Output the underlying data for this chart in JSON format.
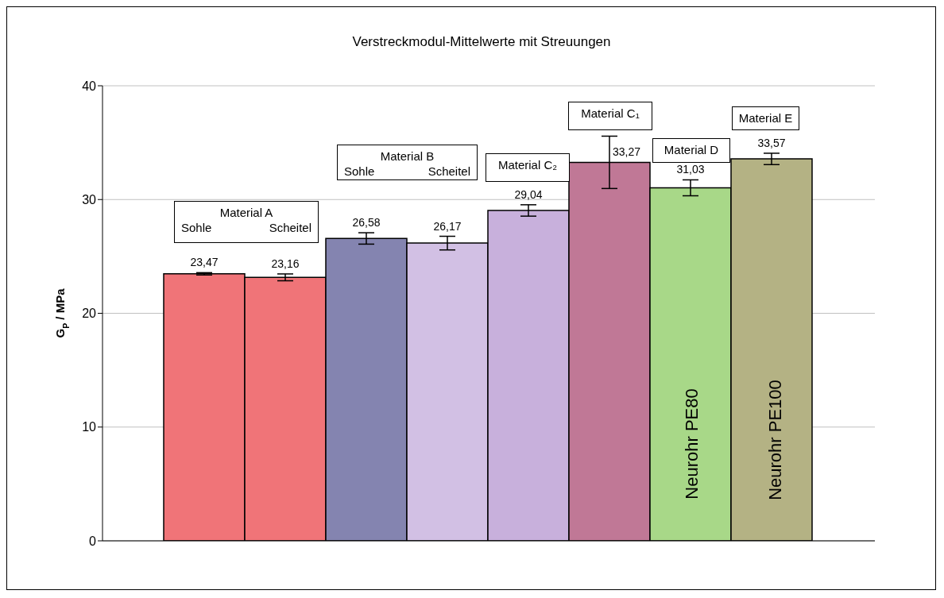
{
  "chart_data": {
    "type": "bar",
    "title": "Verstreckmodul-Mittelwerte mit Streuungen",
    "ylabel": "G$_{P}$ / MPa",
    "categories": [
      null,
      null,
      null,
      null,
      null,
      null,
      null,
      null
    ],
    "values": [
      23.47,
      23.16,
      26.58,
      26.17,
      29.04,
      33.27,
      31.03,
      33.57
    ],
    "errors": [
      0.1,
      0.3,
      0.5,
      0.6,
      0.5,
      2.3,
      0.7,
      0.5
    ],
    "colors": [
      "#f07478",
      "#f07478",
      "#8484b0",
      "#d2c0e4",
      "#c8b0dc",
      "#c07896",
      "#a8d888",
      "#b4b284"
    ],
    "value_labels": [
      "23,47",
      "23,16",
      "26,58",
      "26,17",
      "29,04",
      "33,27",
      "31,03",
      "33,57"
    ],
    "ylim": [
      0,
      40
    ],
    "yticks": [
      0,
      10,
      20,
      30,
      40
    ],
    "grid": "y",
    "tick_labels": "y",
    "annotations": [
      "Material A",
      "Sohle",
      "Scheitel",
      "Material B",
      "Sohle",
      "Scheitel",
      "Material C₂",
      "Material C₁",
      "Material D",
      "Material E",
      "Neurohr PE80",
      "Neurohr PE100"
    ]
  }
}
